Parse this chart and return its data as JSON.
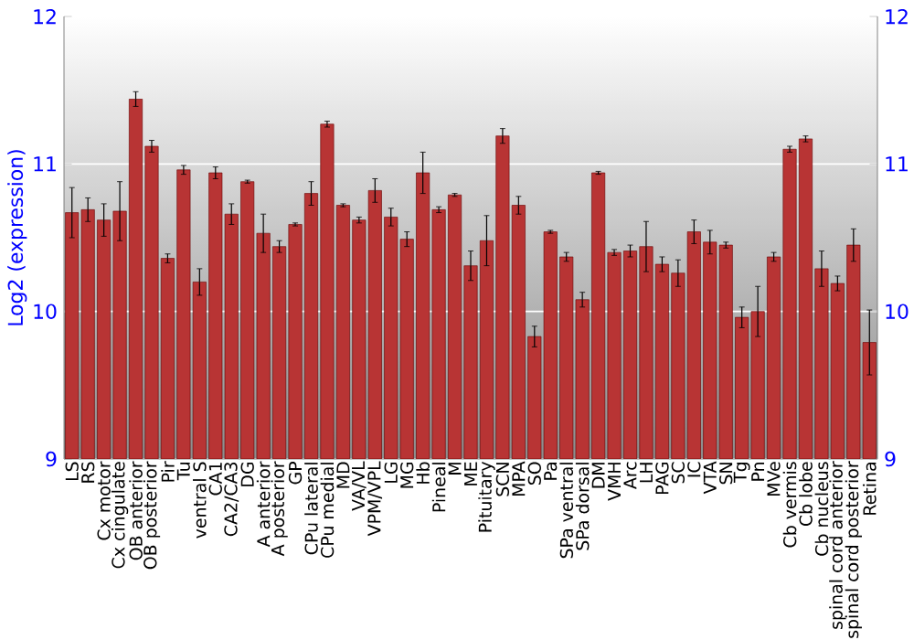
{
  "chart_data": {
    "type": "bar",
    "ylabel": "Log2 (expression)",
    "categories": [
      "LS",
      "RS",
      "Cx motor",
      "Cx cingulate",
      "OB anterior",
      "OB posterior",
      "Pir",
      "Tu",
      "ventral S",
      "CA1",
      "CA2/CA3",
      "DG",
      "A anterior",
      "A posterior",
      "GP",
      "CPu lateral",
      "CPu medial",
      "MD",
      "VA/VL",
      "VPM/VPL",
      "LG",
      "MG",
      "Hb",
      "Pineal",
      "M",
      "ME",
      "Pituitary",
      "SCN",
      "MPA",
      "SO",
      "Pa",
      "SPa ventral",
      "SPa dorsal",
      "DM",
      "VMH",
      "Arc",
      "LH",
      "PAG",
      "SC",
      "IC",
      "VTA",
      "SN",
      "Tg",
      "Pn",
      "MVe",
      "Cb vermis",
      "Cb lobe",
      "Cb nucleus",
      "spinal cord anterior",
      "spinal cord posterior",
      "Retina"
    ],
    "values": [
      10.67,
      10.69,
      10.62,
      10.68,
      11.44,
      11.12,
      10.36,
      10.96,
      10.2,
      10.94,
      10.66,
      10.88,
      10.53,
      10.44,
      10.59,
      10.8,
      11.27,
      10.72,
      10.62,
      10.82,
      10.64,
      10.49,
      10.94,
      10.69,
      10.79,
      10.31,
      10.48,
      11.19,
      10.72,
      9.83,
      10.54,
      10.37,
      10.08,
      10.94,
      10.4,
      10.41,
      10.44,
      10.32,
      10.26,
      10.54,
      10.47,
      10.45,
      9.96,
      10.0,
      10.37,
      11.1,
      11.17,
      10.29,
      10.19,
      10.45,
      9.79
    ],
    "errors": [
      0.17,
      0.08,
      0.11,
      0.2,
      0.05,
      0.04,
      0.03,
      0.03,
      0.09,
      0.04,
      0.07,
      0.01,
      0.13,
      0.04,
      0.01,
      0.08,
      0.02,
      0.01,
      0.02,
      0.08,
      0.06,
      0.05,
      0.14,
      0.02,
      0.01,
      0.1,
      0.17,
      0.05,
      0.06,
      0.07,
      0.01,
      0.03,
      0.05,
      0.01,
      0.02,
      0.04,
      0.17,
      0.05,
      0.09,
      0.08,
      0.08,
      0.02,
      0.07,
      0.17,
      0.03,
      0.02,
      0.02,
      0.12,
      0.05,
      0.11,
      0.22
    ],
    "color": "#b83434",
    "ylim": [
      9,
      12
    ],
    "yticks": [
      9,
      10,
      11,
      12
    ],
    "y2lim": [
      9,
      12
    ],
    "y2ticks": [
      9,
      10,
      11,
      12
    ],
    "grid": "y"
  }
}
